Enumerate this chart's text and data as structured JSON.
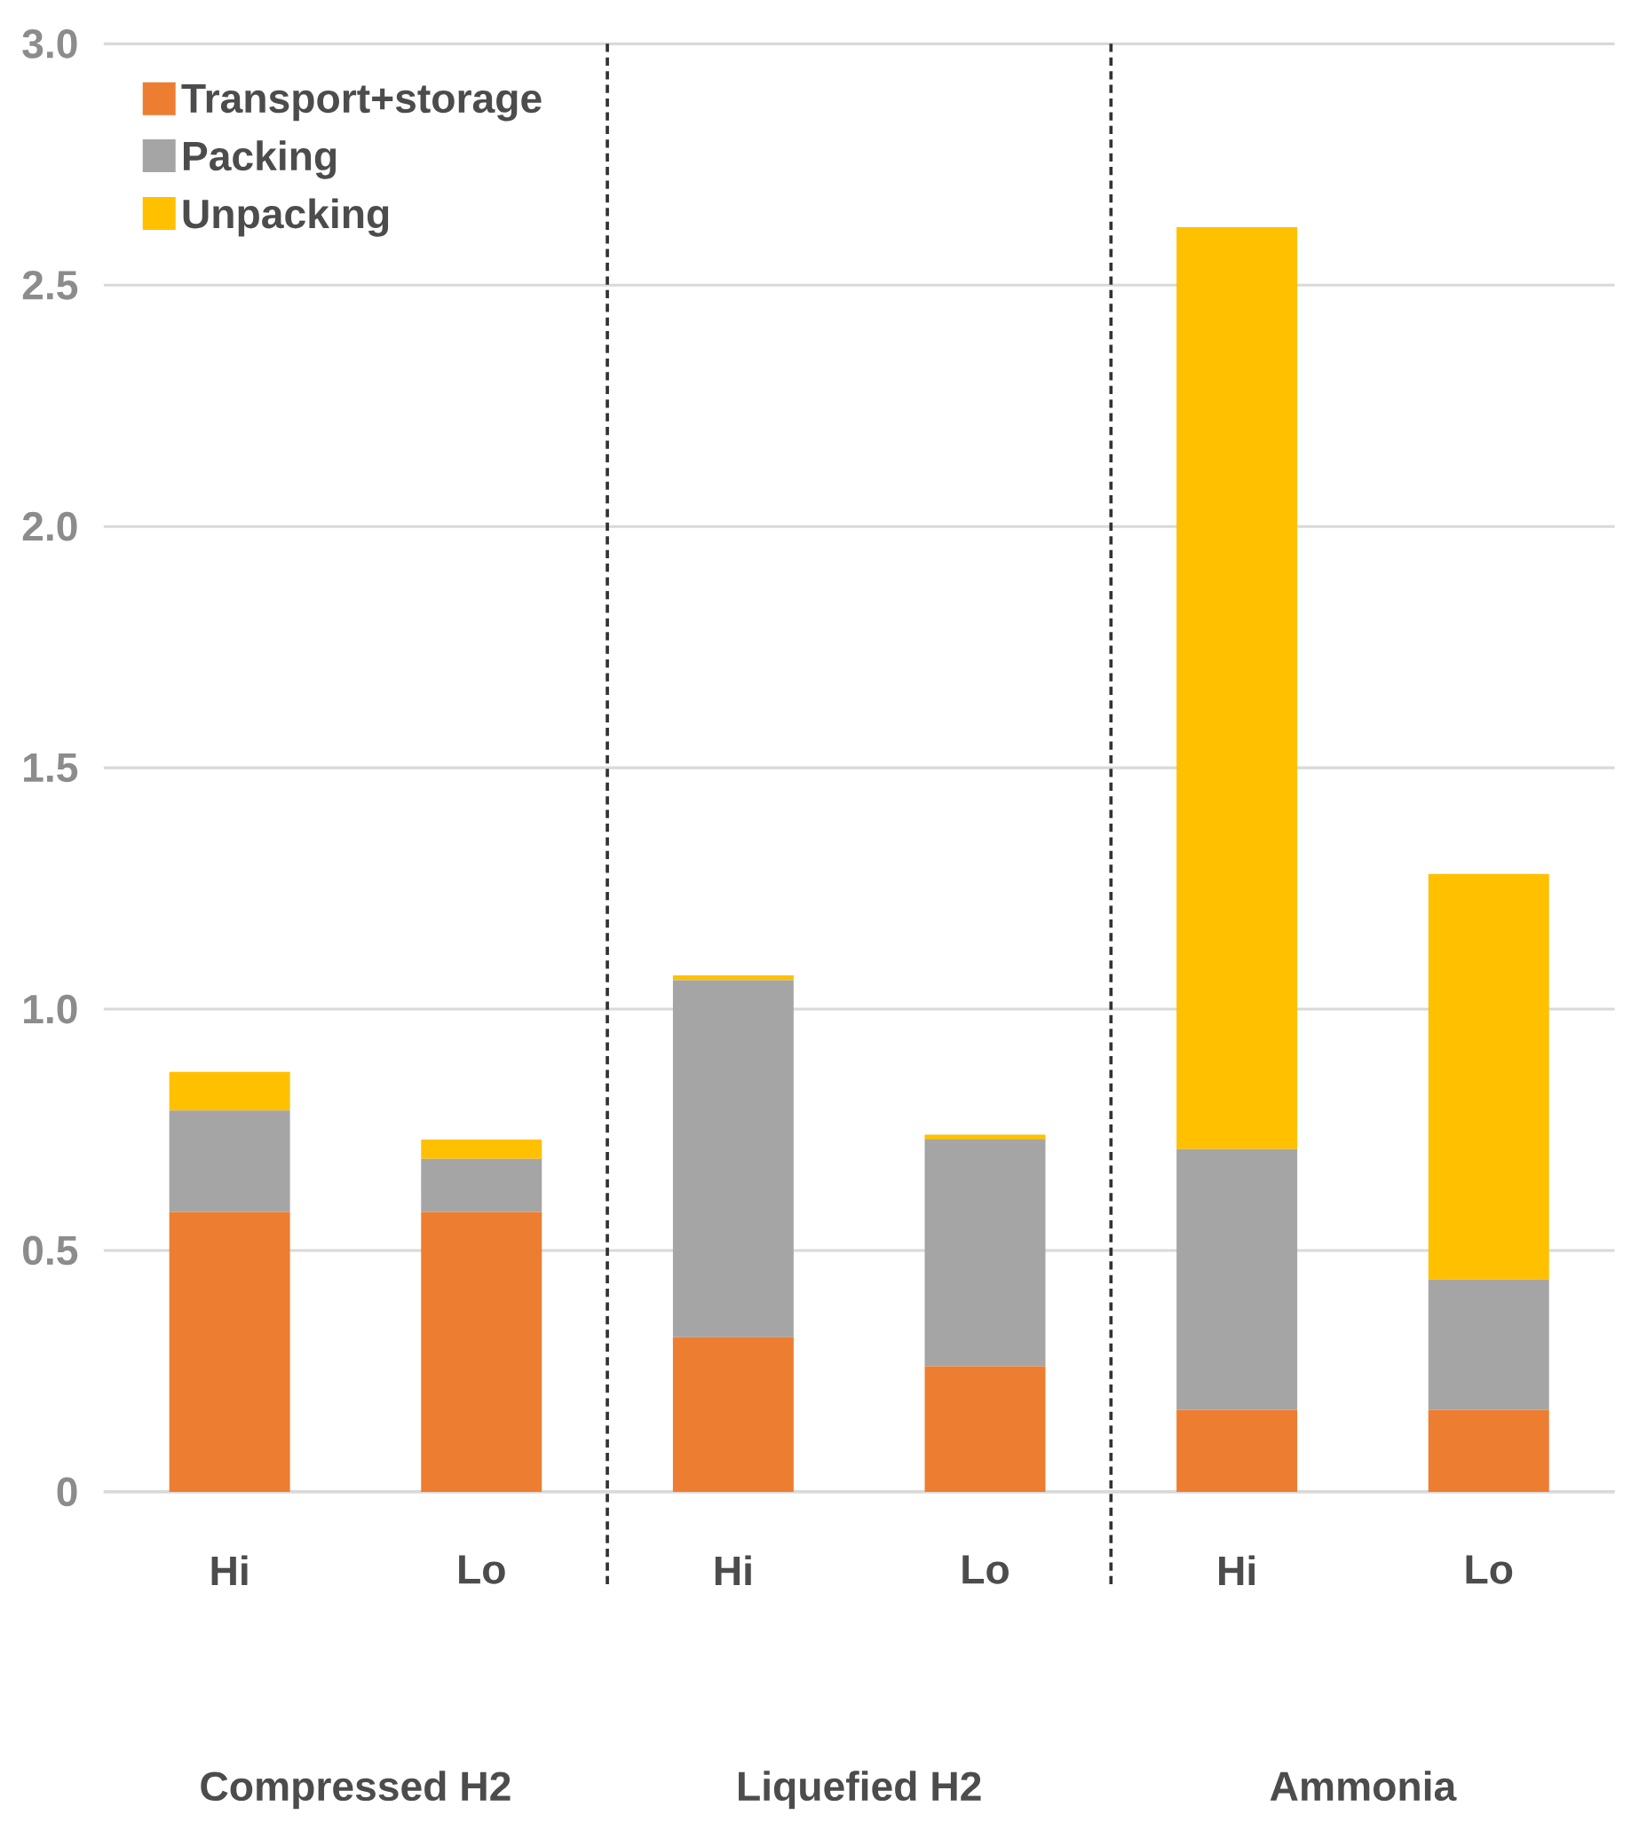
{
  "chart_data": {
    "type": "bar",
    "stacked": true,
    "categories": [
      "Hi",
      "Lo",
      "Hi",
      "Lo",
      "Hi",
      "Lo"
    ],
    "series": [
      {
        "name": "Transport+storage",
        "color": "#ed7d31",
        "values": [
          0.58,
          0.58,
          0.32,
          0.26,
          0.17,
          0.17
        ]
      },
      {
        "name": "Packing",
        "color": "#a5a5a5",
        "values": [
          0.21,
          0.11,
          0.74,
          0.47,
          0.54,
          0.27
        ]
      },
      {
        "name": "Unpacking",
        "color": "#ffc000",
        "values": [
          0.08,
          0.04,
          0.01,
          0.01,
          1.91,
          0.84
        ]
      }
    ],
    "ylim": [
      0,
      3.0
    ],
    "yticks": [
      {
        "value": 0,
        "label": "0"
      },
      {
        "value": 0.5,
        "label": "0.5"
      },
      {
        "value": 1.0,
        "label": "1.0"
      },
      {
        "value": 1.5,
        "label": "1.5"
      },
      {
        "value": 2.0,
        "label": "2.0"
      },
      {
        "value": 2.5,
        "label": "2.5"
      },
      {
        "value": 3.0,
        "label": "3.0"
      }
    ],
    "grid": "y",
    "legend": "top left",
    "annotations": [
      "Compressed H2",
      "Liquefied H2",
      "Ammonia"
    ]
  }
}
